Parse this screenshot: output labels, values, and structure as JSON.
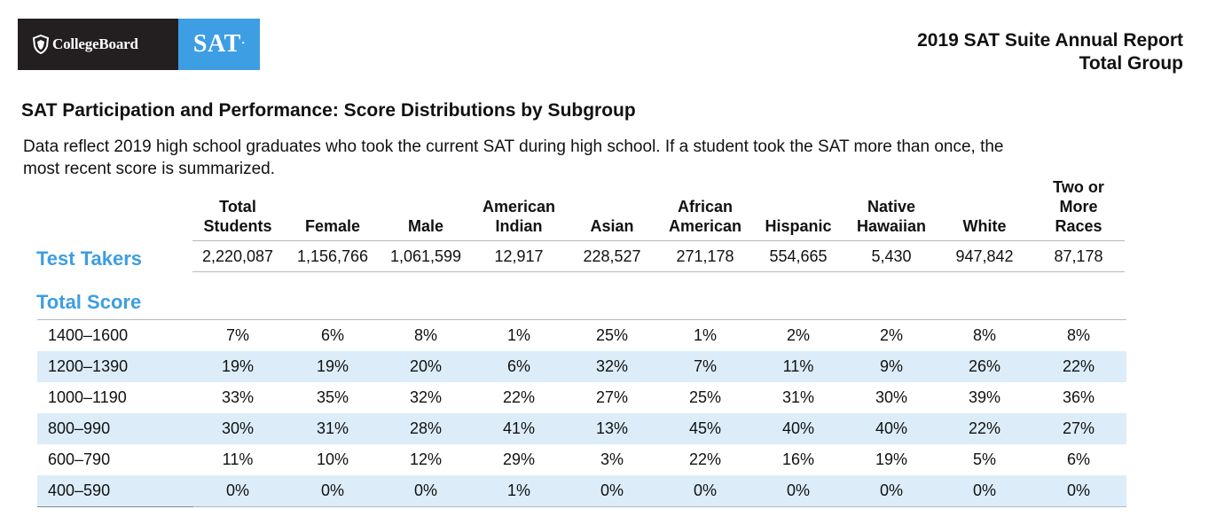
{
  "header": {
    "logo_brand": "CollegeBoard",
    "logo_product": "SAT",
    "report_title": "2019 SAT Suite Annual Report",
    "report_subtitle": "Total Group"
  },
  "page_title": "SAT Participation and Performance: Score Distributions by Subgroup",
  "description_line1": "Data reflect 2019 high school graduates who took the current SAT during high school. If a student took the SAT more than once, the",
  "description_line2": "most recent score is summarized.",
  "columns": [
    [
      "Total",
      "Students"
    ],
    [
      "Female"
    ],
    [
      "Male"
    ],
    [
      "American",
      "Indian"
    ],
    [
      "Asian"
    ],
    [
      "African",
      "American"
    ],
    [
      "Hispanic"
    ],
    [
      "Native",
      "Hawaiian"
    ],
    [
      "White"
    ],
    [
      "Two or",
      "More",
      "Races"
    ]
  ],
  "test_takers": {
    "label": "Test Takers",
    "values": [
      "2,220,087",
      "1,156,766",
      "1,061,599",
      "12,917",
      "228,527",
      "271,178",
      "554,665",
      "5,430",
      "947,842",
      "87,178"
    ]
  },
  "total_score": {
    "label": "Total Score",
    "rows": [
      {
        "range": "1400–1600",
        "values": [
          "7%",
          "6%",
          "8%",
          "1%",
          "25%",
          "1%",
          "2%",
          "2%",
          "8%",
          "8%"
        ]
      },
      {
        "range": "1200–1390",
        "values": [
          "19%",
          "19%",
          "20%",
          "6%",
          "32%",
          "7%",
          "11%",
          "9%",
          "26%",
          "22%"
        ]
      },
      {
        "range": "1000–1190",
        "values": [
          "33%",
          "35%",
          "32%",
          "22%",
          "27%",
          "25%",
          "31%",
          "30%",
          "39%",
          "36%"
        ]
      },
      {
        "range": "800–990",
        "values": [
          "30%",
          "31%",
          "28%",
          "41%",
          "13%",
          "45%",
          "40%",
          "40%",
          "22%",
          "27%"
        ]
      },
      {
        "range": "600–790",
        "values": [
          "11%",
          "10%",
          "12%",
          "29%",
          "3%",
          "22%",
          "16%",
          "19%",
          "5%",
          "6%"
        ]
      },
      {
        "range": "400–590",
        "values": [
          "0%",
          "0%",
          "0%",
          "1%",
          "0%",
          "0%",
          "0%",
          "0%",
          "0%",
          "0%"
        ]
      }
    ]
  },
  "colors": {
    "accent": "#3d9ee3",
    "stripe": "#dcedf9",
    "logo_dark": "#231f20"
  }
}
